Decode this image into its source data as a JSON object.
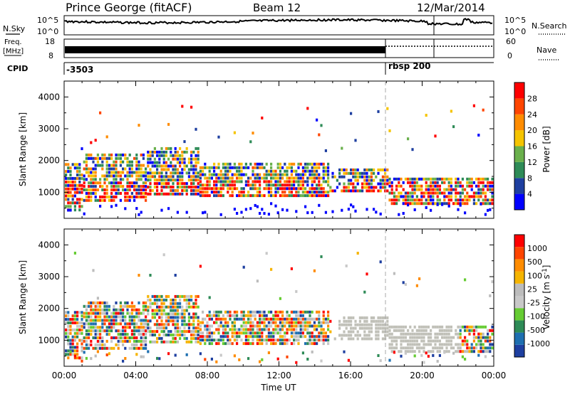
{
  "header": {
    "station": "Prince George (fitACF)",
    "beam": "Beam 12",
    "date": "12/Mar/2014"
  },
  "noise_panel": {
    "left_label": "N.Sky",
    "left_ticks": [
      "10^5",
      "10^0"
    ],
    "right_label": "N.Search",
    "right_ticks": [
      "10^5",
      "10^0"
    ]
  },
  "freq_panel": {
    "left_label_1": "Freq.",
    "left_label_2": "[MHz]",
    "left_ticks": [
      "18",
      "8"
    ],
    "right_label": "Nave",
    "right_ticks": [
      "60",
      "0"
    ]
  },
  "cpid_panel": {
    "label": "CPID",
    "program_1": "-3503",
    "program_2": "rbsp 200"
  },
  "colors": {
    "power_scale": [
      "#0000ff",
      "#1e3fa0",
      "#2e8b57",
      "#6ab04c",
      "#f5c400",
      "#ff8c00",
      "#ff4500",
      "#ff0000"
    ],
    "velocity_scale": [
      "#ff0000",
      "#ff4500",
      "#ff8c00",
      "#f5b400",
      "#bcbcbc",
      "#c8c8c8",
      "#66cc33",
      "#2e8b57",
      "#1e6fb0",
      "#1e3fa0"
    ],
    "ground_scatter": "#c0c0b8"
  },
  "chart_data": [
    {
      "type": "heatmap",
      "title": "",
      "xlabel": "Time UT",
      "ylabel": "Slant Range [km]",
      "xlim": [
        "00:00",
        "24:00"
      ],
      "ylim": [
        180,
        4500
      ],
      "x_ticks": [
        "00:00",
        "04:00",
        "08:00",
        "12:00",
        "16:00",
        "20:00",
        "00:00"
      ],
      "y_ticks": [
        1000,
        2000,
        3000,
        4000
      ],
      "colorbar": {
        "label": "Power [dB]",
        "ticks": [
          4,
          8,
          12,
          16,
          20,
          24,
          28
        ],
        "range": [
          0,
          30
        ]
      }
    },
    {
      "type": "heatmap",
      "title": "",
      "xlabel": "Time UT",
      "ylabel": "Slant Range [km]",
      "xlim": [
        "00:00",
        "24:00"
      ],
      "ylim": [
        180,
        4500
      ],
      "x_ticks": [
        "00:00",
        "04:00",
        "08:00",
        "12:00",
        "16:00",
        "20:00",
        "00:00"
      ],
      "y_ticks": [
        1000,
        2000,
        3000,
        4000
      ],
      "colorbar": {
        "label": "Velocity [m s^-1]",
        "ticks": [
          1000,
          500,
          100,
          25,
          -25,
          -100,
          -500,
          -1000
        ]
      }
    }
  ],
  "xaxis_title": "Time UT"
}
